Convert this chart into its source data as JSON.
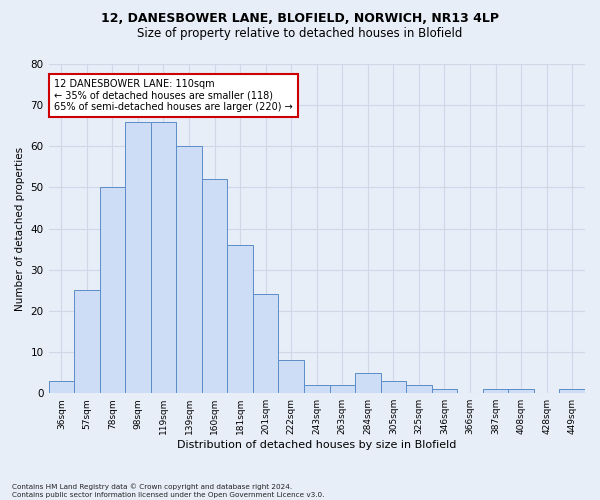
{
  "title1": "12, DANESBOWER LANE, BLOFIELD, NORWICH, NR13 4LP",
  "title2": "Size of property relative to detached houses in Blofield",
  "xlabel": "Distribution of detached houses by size in Blofield",
  "ylabel": "Number of detached properties",
  "footnote": "Contains HM Land Registry data © Crown copyright and database right 2024.\nContains public sector information licensed under the Open Government Licence v3.0.",
  "bin_labels": [
    "36sqm",
    "57sqm",
    "78sqm",
    "98sqm",
    "119sqm",
    "139sqm",
    "160sqm",
    "181sqm",
    "201sqm",
    "222sqm",
    "243sqm",
    "263sqm",
    "284sqm",
    "305sqm",
    "325sqm",
    "346sqm",
    "366sqm",
    "387sqm",
    "408sqm",
    "428sqm",
    "449sqm"
  ],
  "bar_values": [
    3,
    25,
    50,
    66,
    66,
    60,
    52,
    36,
    24,
    8,
    2,
    2,
    5,
    3,
    2,
    1,
    0,
    1,
    1,
    0,
    1
  ],
  "bar_color": "#ccddf5",
  "bar_edge_color": "#5b8dc8",
  "annotation_box_text": "12 DANESBOWER LANE: 110sqm\n← 35% of detached houses are smaller (118)\n65% of semi-detached houses are larger (220) →",
  "annotation_box_color": "#ffffff",
  "annotation_box_edge_color": "#cc0000",
  "grid_color": "#d0d8e8",
  "ylim": [
    0,
    80
  ],
  "yticks": [
    0,
    10,
    20,
    30,
    40,
    50,
    60,
    70,
    80
  ],
  "bg_color": "#e8eef8",
  "title1_fontsize": 9,
  "title2_fontsize": 8.5
}
